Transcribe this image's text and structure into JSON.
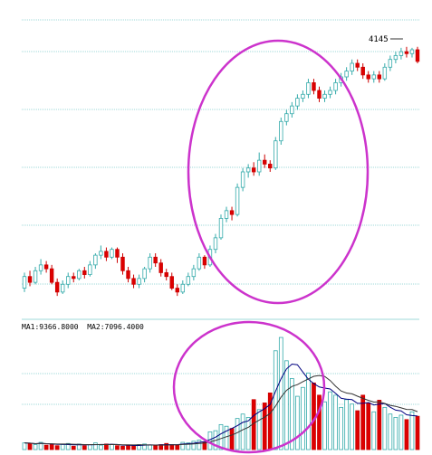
{
  "chart_data": {
    "type": "candlestick+volume",
    "price_panel": {
      "peak_label": "4145",
      "candles": [
        [
          2900,
          2960,
          2880,
          2980
        ],
        [
          2960,
          2930,
          2910,
          2990
        ],
        [
          2930,
          2990,
          2920,
          3010
        ],
        [
          2990,
          3020,
          2970,
          3050
        ],
        [
          3020,
          3000,
          2980,
          3040
        ],
        [
          3000,
          2930,
          2920,
          3020
        ],
        [
          2930,
          2880,
          2860,
          2950
        ],
        [
          2880,
          2920,
          2870,
          2940
        ],
        [
          2920,
          2960,
          2900,
          2980
        ],
        [
          2960,
          2950,
          2930,
          2980
        ],
        [
          2950,
          2990,
          2940,
          3000
        ],
        [
          2990,
          2970,
          2950,
          3010
        ],
        [
          2970,
          3020,
          2960,
          3040
        ],
        [
          3020,
          3070,
          3000,
          3080
        ],
        [
          3070,
          3090,
          3050,
          3120
        ],
        [
          3090,
          3060,
          3040,
          3110
        ],
        [
          3060,
          3100,
          3050,
          3110
        ],
        [
          3100,
          3060,
          3030,
          3110
        ],
        [
          3060,
          2990,
          2970,
          3080
        ],
        [
          2990,
          2950,
          2930,
          3010
        ],
        [
          2950,
          2920,
          2900,
          2970
        ],
        [
          2920,
          2950,
          2900,
          2970
        ],
        [
          2950,
          3000,
          2930,
          3010
        ],
        [
          3000,
          3060,
          2980,
          3080
        ],
        [
          3060,
          3030,
          3010,
          3080
        ],
        [
          3030,
          2980,
          2960,
          3050
        ],
        [
          2980,
          2960,
          2940,
          3000
        ],
        [
          2960,
          2900,
          2890,
          2980
        ],
        [
          2900,
          2880,
          2860,
          2920
        ],
        [
          2880,
          2920,
          2870,
          2940
        ],
        [
          2920,
          2960,
          2910,
          2980
        ],
        [
          2960,
          3000,
          2940,
          3020
        ],
        [
          3000,
          3060,
          2990,
          3080
        ],
        [
          3060,
          3020,
          3000,
          3070
        ],
        [
          3020,
          3100,
          3010,
          3120
        ],
        [
          3100,
          3160,
          3080,
          3180
        ],
        [
          3160,
          3260,
          3150,
          3280
        ],
        [
          3260,
          3300,
          3240,
          3320
        ],
        [
          3300,
          3280,
          3250,
          3320
        ],
        [
          3280,
          3420,
          3270,
          3440
        ],
        [
          3420,
          3500,
          3400,
          3520
        ],
        [
          3500,
          3520,
          3470,
          3540
        ],
        [
          3520,
          3500,
          3480,
          3550
        ],
        [
          3500,
          3560,
          3480,
          3600
        ],
        [
          3560,
          3540,
          3520,
          3590
        ],
        [
          3540,
          3520,
          3500,
          3560
        ],
        [
          3520,
          3660,
          3510,
          3680
        ],
        [
          3660,
          3760,
          3640,
          3780
        ],
        [
          3760,
          3800,
          3740,
          3820
        ],
        [
          3800,
          3840,
          3780,
          3860
        ],
        [
          3840,
          3880,
          3820,
          3900
        ],
        [
          3880,
          3900,
          3860,
          3920
        ],
        [
          3900,
          3960,
          3880,
          3980
        ],
        [
          3960,
          3920,
          3900,
          3980
        ],
        [
          3920,
          3880,
          3860,
          3940
        ],
        [
          3880,
          3900,
          3860,
          3920
        ],
        [
          3900,
          3920,
          3880,
          3940
        ],
        [
          3920,
          3960,
          3900,
          3980
        ],
        [
          3960,
          3990,
          3940,
          4010
        ],
        [
          3990,
          4020,
          3970,
          4040
        ],
        [
          4020,
          4060,
          4000,
          4080
        ],
        [
          4060,
          4040,
          4020,
          4080
        ],
        [
          4040,
          4000,
          3980,
          4060
        ],
        [
          4000,
          3980,
          3960,
          4020
        ],
        [
          3980,
          4000,
          3960,
          4020
        ],
        [
          4000,
          3980,
          3960,
          4020
        ],
        [
          3980,
          4040,
          3970,
          4060
        ],
        [
          4040,
          4080,
          4020,
          4100
        ],
        [
          4080,
          4100,
          4060,
          4120
        ],
        [
          4100,
          4120,
          4080,
          4140
        ],
        [
          4120,
          4110,
          4090,
          4145
        ],
        [
          4110,
          4130,
          4090,
          4140
        ],
        [
          4130,
          4070,
          4060,
          4145
        ]
      ],
      "price_range": [
        2800,
        4200
      ]
    },
    "volume_panel": {
      "ma_label": "MA1:9366.8000  MA2:7096.4000",
      "volumes": [
        1200,
        1100,
        900,
        1300,
        800,
        1000,
        700,
        900,
        1100,
        600,
        1000,
        700,
        900,
        1200,
        800,
        1000,
        900,
        700,
        600,
        800,
        700,
        900,
        1000,
        800,
        700,
        900,
        1100,
        900,
        800,
        1300,
        1200,
        1500,
        1700,
        1400,
        3200,
        3400,
        4500,
        4200,
        3800,
        5600,
        6400,
        5800,
        9000,
        7200,
        8400,
        10200,
        17800,
        20200,
        16000,
        12800,
        9600,
        11200,
        13800,
        12000,
        9800,
        8600,
        10400,
        9800,
        7600,
        9000,
        8200,
        7000,
        9800,
        8400,
        6800,
        8900,
        7600,
        6400,
        5800,
        6200,
        5400,
        6800,
        6000
      ],
      "volume_range": [
        0,
        22000
      ]
    }
  }
}
